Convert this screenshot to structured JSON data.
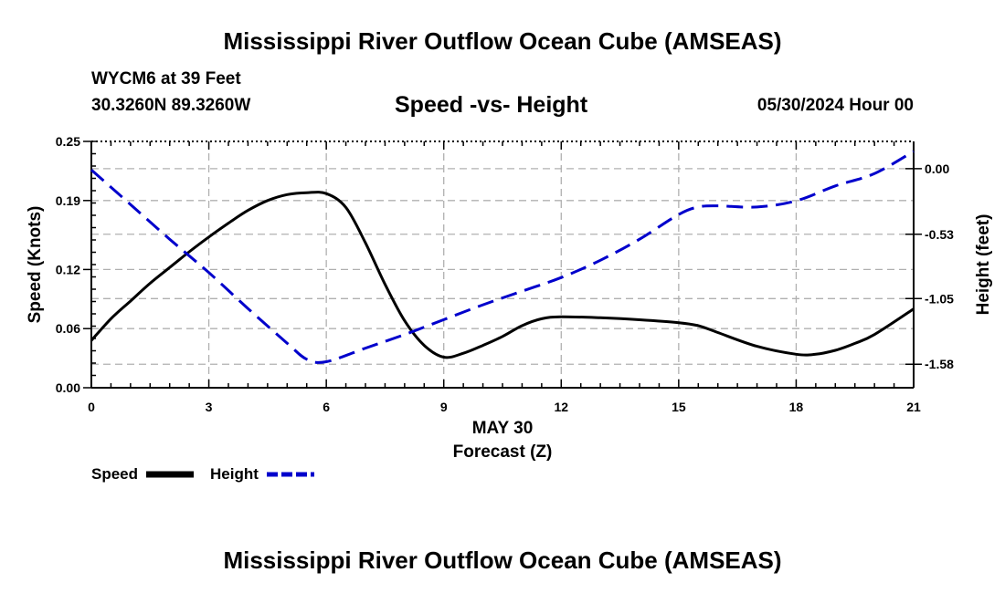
{
  "page": {
    "title": "Mississippi River Outflow Ocean Cube (AMSEAS)",
    "station_line": "WYCM6 at 39 Feet",
    "coords_line": "30.3260N  89.3260W",
    "date_line": "05/30/2024 Hour 00",
    "bottom_title": "Mississippi River Outflow Ocean Cube (AMSEAS)"
  },
  "chart_data": {
    "type": "line",
    "title": "Speed -vs- Height",
    "xlabel": "Forecast (Z)",
    "xlabel_date": "MAY 30",
    "ylabel_left": "Speed (Knots)",
    "ylabel_right": "Height (feet)",
    "xlim": [
      0,
      21
    ],
    "ylim_left": [
      0,
      0.25
    ],
    "ylim_right": [
      -1.77,
      0.22
    ],
    "x_ticks": [
      0,
      3,
      6,
      9,
      12,
      15,
      18,
      21
    ],
    "x_tick_labels": [
      "0",
      "3",
      "6",
      "9",
      "12",
      "15",
      "18",
      "21"
    ],
    "y_left_ticks": [
      0.0,
      0.06,
      0.12,
      0.19,
      0.25
    ],
    "y_left_tick_labels": [
      "0.00",
      "0.06",
      "0.12",
      "0.19",
      "0.25"
    ],
    "y_right_ticks": [
      0.0,
      -0.53,
      -1.05,
      -1.58
    ],
    "y_right_tick_labels": [
      "0.00",
      "-0.53",
      "-1.05",
      "-1.58"
    ],
    "grid": true,
    "legend_position": "bottom-left",
    "series": [
      {
        "name": "Speed",
        "axis": "left",
        "color": "#000000",
        "style": "solid",
        "x": [
          0,
          0.5,
          1,
          1.5,
          2,
          2.5,
          3,
          3.5,
          4,
          4.5,
          5,
          5.5,
          6,
          6.5,
          7,
          7.5,
          8,
          8.5,
          9,
          9.5,
          10,
          10.5,
          11,
          11.5,
          12,
          13,
          14,
          15,
          15.5,
          16,
          17,
          18,
          18.5,
          19,
          19.5,
          20,
          21
        ],
        "values": [
          0.048,
          0.07,
          0.088,
          0.106,
          0.122,
          0.138,
          0.153,
          0.167,
          0.18,
          0.19,
          0.196,
          0.198,
          0.197,
          0.183,
          0.147,
          0.105,
          0.068,
          0.043,
          0.031,
          0.035,
          0.043,
          0.052,
          0.063,
          0.07,
          0.072,
          0.071,
          0.069,
          0.066,
          0.063,
          0.056,
          0.042,
          0.034,
          0.034,
          0.038,
          0.045,
          0.054,
          0.08
        ]
      },
      {
        "name": "Height",
        "axis": "right",
        "color": "#0000cc",
        "style": "dashed",
        "x": [
          0,
          1,
          2,
          3,
          4,
          5,
          5.5,
          6,
          7,
          8,
          9,
          10,
          11,
          12,
          13,
          14,
          15,
          15.5,
          16,
          17,
          18,
          19,
          20,
          21
        ],
        "values": [
          -0.01,
          -0.29,
          -0.57,
          -0.84,
          -1.13,
          -1.41,
          -1.54,
          -1.56,
          -1.45,
          -1.34,
          -1.22,
          -1.1,
          -0.99,
          -0.88,
          -0.74,
          -0.57,
          -0.37,
          -0.31,
          -0.3,
          -0.31,
          -0.26,
          -0.14,
          -0.04,
          0.14
        ]
      }
    ]
  }
}
